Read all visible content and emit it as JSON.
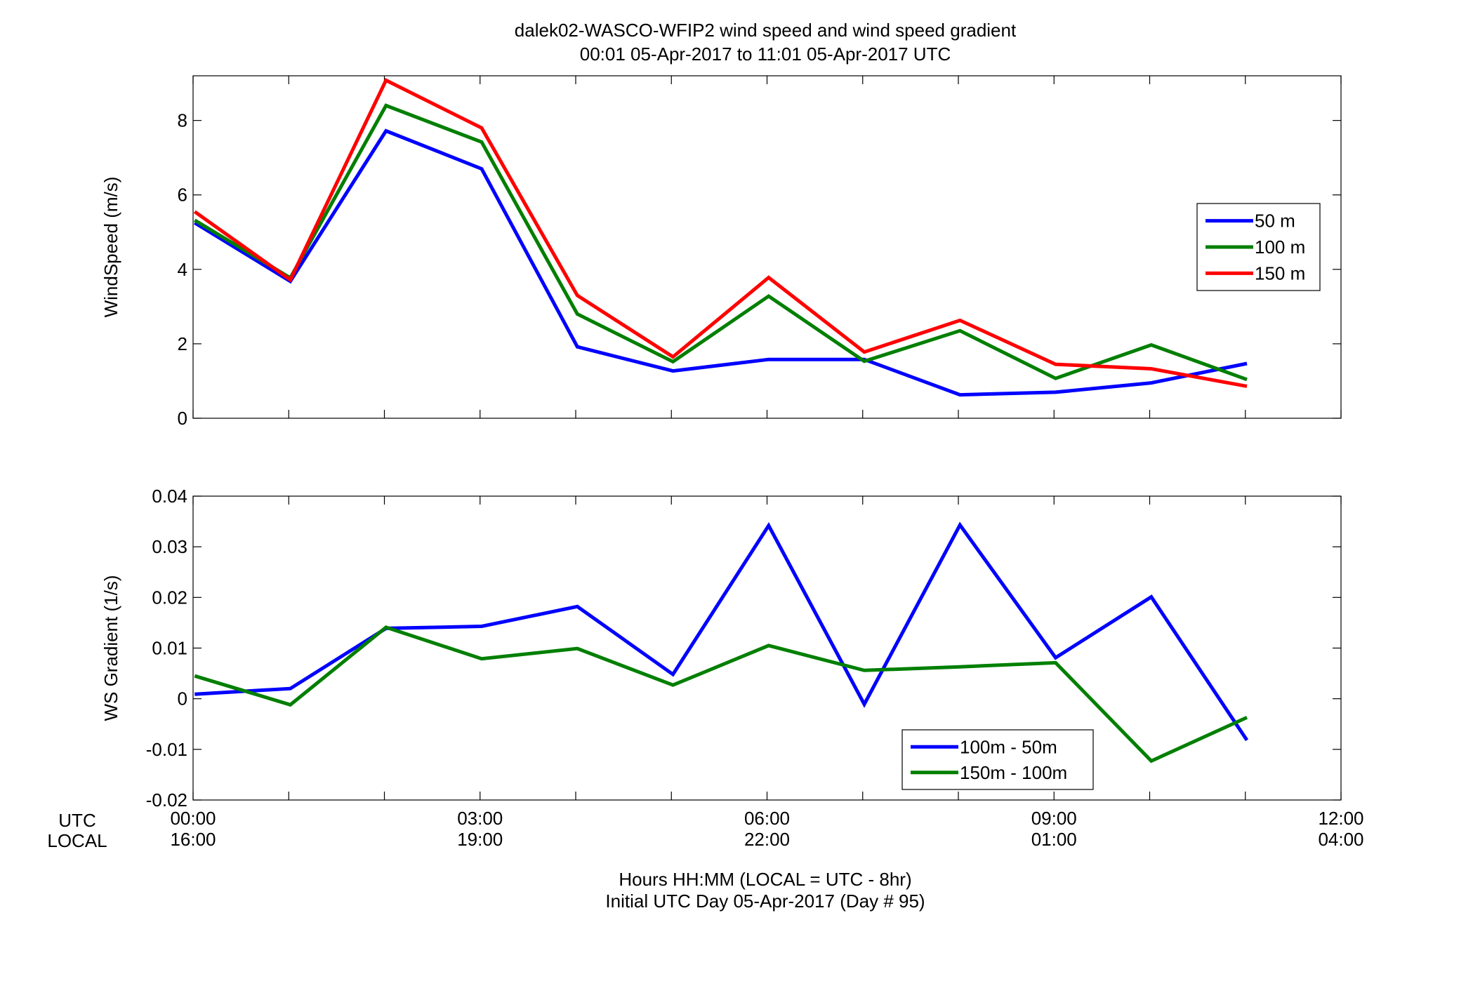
{
  "title_line1": "dalek02-WASCO-WFIP2  wind speed and wind speed gradient",
  "title_line2": "00:01 05-Apr-2017 to 11:01 05-Apr-2017  UTC",
  "row_labels": {
    "utc": "UTC",
    "local": "LOCAL"
  },
  "xlabel_line1": "Hours HH:MM  (LOCAL = UTC - 8hr)",
  "xlabel_line2": "Initial UTC Day 05-Apr-2017 (Day # 95)",
  "x_ticks": [
    {
      "hour": 0,
      "utc": "00:00",
      "local": "16:00"
    },
    {
      "hour": 3,
      "utc": "03:00",
      "local": "19:00"
    },
    {
      "hour": 6,
      "utc": "06:00",
      "local": "22:00"
    },
    {
      "hour": 9,
      "utc": "09:00",
      "local": "01:00"
    },
    {
      "hour": 12,
      "utc": "12:00",
      "local": "04:00"
    }
  ],
  "chart_data": [
    {
      "type": "line",
      "ylabel": "WindSpeed (m/s)",
      "xlim": [
        0,
        12
      ],
      "ylim": [
        0,
        9.2
      ],
      "yticks": [
        0,
        2,
        4,
        6,
        8
      ],
      "legend_position": "right",
      "x": [
        0.0167,
        1.0167,
        2.0167,
        3.0167,
        4.0167,
        5.0167,
        6.0167,
        7.0167,
        8.0167,
        9.0167,
        10.0167,
        11.0167
      ],
      "series": [
        {
          "name": "50 m",
          "color": "#0000ff",
          "values": [
            5.25,
            3.68,
            7.72,
            6.7,
            1.92,
            1.27,
            1.58,
            1.58,
            0.63,
            0.7,
            0.95,
            1.47
          ]
        },
        {
          "name": "100 m",
          "color": "#007f00",
          "values": [
            5.32,
            3.77,
            8.4,
            7.42,
            2.8,
            1.52,
            3.28,
            1.53,
            2.35,
            1.07,
            1.97,
            1.04
          ]
        },
        {
          "name": "150 m",
          "color": "#ff0000",
          "values": [
            5.55,
            3.72,
            9.08,
            7.8,
            3.3,
            1.65,
            3.78,
            1.78,
            2.63,
            1.45,
            1.33,
            0.86
          ]
        }
      ]
    },
    {
      "type": "line",
      "ylabel": "WS Gradient (1/s)",
      "xlim": [
        0,
        12
      ],
      "ylim": [
        -0.02,
        0.04
      ],
      "yticks": [
        -0.02,
        -0.01,
        0,
        0.01,
        0.02,
        0.03,
        0.04
      ],
      "ytick_labels": [
        "-0.02",
        "-0.01",
        "0",
        "0.01",
        "0.02",
        "0.03",
        "0.04"
      ],
      "legend_position": "bottom-right",
      "x": [
        0.0167,
        1.0167,
        2.0167,
        3.0167,
        4.0167,
        5.0167,
        6.0167,
        7.0167,
        8.0167,
        9.0167,
        10.0167,
        11.0167
      ],
      "series": [
        {
          "name": "100m - 50m",
          "color": "#0000ff",
          "values": [
            0.0009,
            0.002,
            0.0139,
            0.0143,
            0.0182,
            0.0048,
            0.0342,
            -0.0011,
            0.0343,
            0.0081,
            0.0201,
            -0.0082
          ]
        },
        {
          "name": "150m - 100m",
          "color": "#007f00",
          "values": [
            0.0045,
            -0.0012,
            0.0141,
            0.0079,
            0.0099,
            0.0027,
            0.0105,
            0.0056,
            0.0063,
            0.0071,
            -0.0123,
            -0.0037
          ]
        }
      ]
    }
  ]
}
